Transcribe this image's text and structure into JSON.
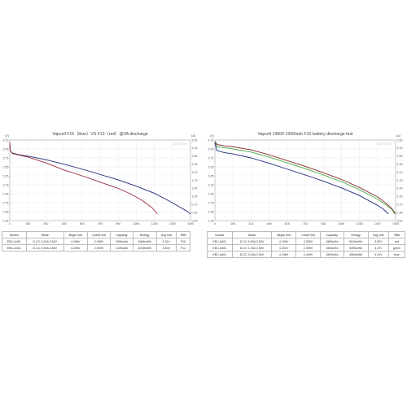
{
  "charts": [
    {
      "title": "Vapcell F15（blue）VS F12（red）@3A discharge",
      "watermark": "ZKETECH",
      "left_unit": "(V)",
      "right_unit": "(A)",
      "table": {
        "headers": [
          "Device",
          "Mode",
          "Begin Volt",
          "Cutoff Volt",
          "Capacity",
          "Energy",
          "Avg Volt",
          "Tittle"
        ],
        "rows": [
          [
            "EBC-A40L",
            "D-CC 3.00A 2.50V",
            "4.196V",
            "2.499V",
            "1500mAh",
            "4964mWh",
            "3.31V",
            "F15"
          ],
          [
            "EBC-A40L",
            "D-CC 3.00A 2.50V",
            "4.195V",
            "2.500V",
            "1225mAh",
            "4039mWh",
            "3.30V",
            "F12"
          ]
        ]
      }
    },
    {
      "title": "Vapcell 14500 1500mah F15 battery discharge test",
      "watermark": "ZKETECH",
      "left_unit": "(V)",
      "right_unit": "(A)",
      "table": {
        "headers": [
          "Device",
          "Mode",
          "Begin Volt",
          "Cutoff Volt",
          "Capacity",
          "Energy",
          "Avg Volt",
          "Tittle"
        ],
        "rows": [
          [
            "EBC-A40L",
            "D-CC 0.50A 2.50V",
            "4.195V",
            "2.500V",
            "1563mAh",
            "5519mWh",
            "3.53V",
            "red"
          ],
          [
            "EBC-A40L",
            "D-CC 1.00A 2.50V",
            "4.202V",
            "2.499V",
            "1554mAh",
            "5395mWh",
            "3.47V",
            "green"
          ],
          [
            "EBC-A40L",
            "D-CC 3.00A 2.50V",
            "4.196V",
            "2.499V",
            "1500mAh",
            "4964mWh",
            "3.31V",
            "blue"
          ]
        ]
      }
    }
  ],
  "chart_data": [
    {
      "type": "line",
      "title": "Vapcell F15（blue）VS F12（red）@3A discharge",
      "xlabel": "",
      "ylabel": "(V)",
      "y2label": "(A)",
      "xlim": [
        0,
        1500
      ],
      "ylim": [
        2.35,
        4.15
      ],
      "y2lim": [
        0,
        3.5
      ],
      "x_ticks": [
        "0",
        "150",
        "300",
        "450",
        "600",
        "750",
        "900",
        "1050",
        "1200",
        "1350",
        "1500"
      ],
      "y_ticks": [
        "2.35",
        "2.55",
        "2.75",
        "2.95",
        "3.15",
        "3.35",
        "3.55",
        "3.75",
        "3.95",
        "4.15"
      ],
      "y2_ticks": [
        "0.00",
        "0.35",
        "0.70",
        "1.05",
        "1.40",
        "1.75",
        "2.10",
        "2.45",
        "2.80",
        "3.15",
        "3.50"
      ],
      "grid": true,
      "series": [
        {
          "name": "F15",
          "color": "#1f2a7a",
          "points": [
            [
              0,
              4.1
            ],
            [
              3,
              3.92
            ],
            [
              20,
              3.86
            ],
            [
              80,
              3.82
            ],
            [
              150,
              3.79
            ],
            [
              300,
              3.71
            ],
            [
              450,
              3.61
            ],
            [
              600,
              3.5
            ],
            [
              750,
              3.38
            ],
            [
              900,
              3.26
            ],
            [
              1050,
              3.12
            ],
            [
              1200,
              2.96
            ],
            [
              1300,
              2.82
            ],
            [
              1400,
              2.67
            ],
            [
              1470,
              2.56
            ],
            [
              1500,
              2.5
            ]
          ]
        },
        {
          "name": "F12",
          "color": "#9a2a3a",
          "points": [
            [
              0,
              4.1
            ],
            [
              3,
              3.92
            ],
            [
              20,
              3.85
            ],
            [
              80,
              3.81
            ],
            [
              150,
              3.77
            ],
            [
              300,
              3.64
            ],
            [
              450,
              3.48
            ],
            [
              600,
              3.35
            ],
            [
              750,
              3.21
            ],
            [
              900,
              3.07
            ],
            [
              1000,
              2.95
            ],
            [
              1100,
              2.8
            ],
            [
              1180,
              2.64
            ],
            [
              1225,
              2.5
            ]
          ]
        }
      ]
    },
    {
      "type": "line",
      "title": "Vapcell 14500 1500mah F15 battery discharge test",
      "xlabel": "",
      "ylabel": "(V)",
      "y2label": "(A)",
      "xlim": [
        0,
        1563
      ],
      "ylim": [
        2.35,
        4.15
      ],
      "y2lim": [
        0,
        3.5
      ],
      "x_ticks": [
        "0",
        "156",
        "313",
        "469",
        "625",
        "782",
        "938",
        "1094",
        "1250",
        "1407",
        "1563"
      ],
      "y_ticks": [
        "2.35",
        "2.55",
        "2.75",
        "2.95",
        "3.15",
        "3.35",
        "3.55",
        "3.75",
        "3.95",
        "4.15"
      ],
      "y2_ticks": [
        "0.00",
        "0.35",
        "0.70",
        "1.05",
        "1.40",
        "1.75",
        "2.10",
        "2.45",
        "2.80",
        "3.15",
        "3.50"
      ],
      "grid": true,
      "series": [
        {
          "name": "red",
          "color": "#8a2a2a",
          "points": [
            [
              0,
              4.12
            ],
            [
              20,
              4.05
            ],
            [
              80,
              4.02
            ],
            [
              156,
              4.0
            ],
            [
              313,
              3.93
            ],
            [
              469,
              3.82
            ],
            [
              625,
              3.69
            ],
            [
              782,
              3.56
            ],
            [
              938,
              3.42
            ],
            [
              1094,
              3.27
            ],
            [
              1250,
              3.09
            ],
            [
              1407,
              2.88
            ],
            [
              1480,
              2.74
            ],
            [
              1530,
              2.62
            ],
            [
              1563,
              2.5
            ]
          ]
        },
        {
          "name": "green",
          "color": "#4aaa4a",
          "points": [
            [
              0,
              4.12
            ],
            [
              20,
              4.0
            ],
            [
              80,
              3.98
            ],
            [
              156,
              3.95
            ],
            [
              313,
              3.88
            ],
            [
              469,
              3.77
            ],
            [
              625,
              3.64
            ],
            [
              782,
              3.51
            ],
            [
              938,
              3.37
            ],
            [
              1094,
              3.22
            ],
            [
              1250,
              3.04
            ],
            [
              1407,
              2.83
            ],
            [
              1480,
              2.7
            ],
            [
              1530,
              2.6
            ],
            [
              1554,
              2.5
            ]
          ]
        },
        {
          "name": "blue",
          "color": "#1f2a7a",
          "points": [
            [
              0,
              4.1
            ],
            [
              15,
              3.92
            ],
            [
              80,
              3.87
            ],
            [
              156,
              3.84
            ],
            [
              313,
              3.75
            ],
            [
              469,
              3.63
            ],
            [
              625,
              3.5
            ],
            [
              782,
              3.37
            ],
            [
              938,
              3.23
            ],
            [
              1094,
              3.08
            ],
            [
              1250,
              2.91
            ],
            [
              1407,
              2.69
            ],
            [
              1450,
              2.62
            ],
            [
              1480,
              2.55
            ],
            [
              1500,
              2.5
            ]
          ]
        }
      ]
    }
  ]
}
